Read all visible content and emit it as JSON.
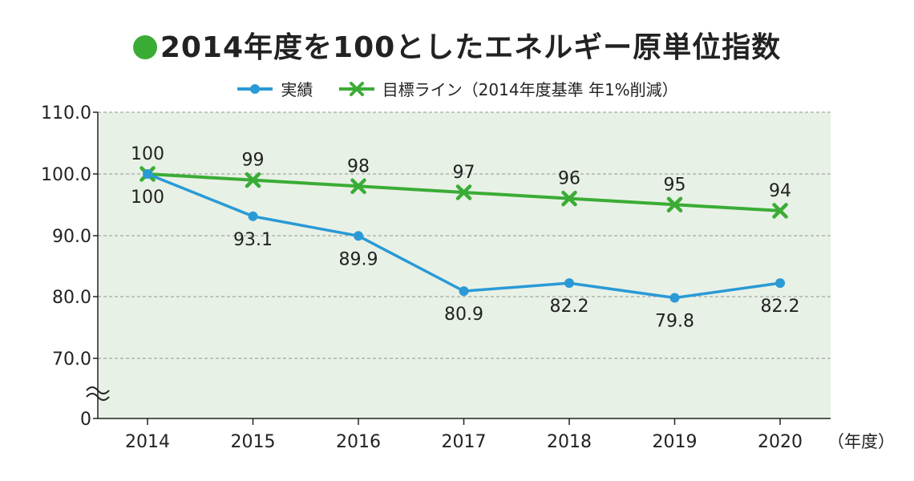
{
  "title": "2014年度を100としたエネルギー原単位指数",
  "colors": {
    "actual": "#2a9ad6",
    "target": "#3aac35",
    "plot_bg": "#e8f1e6",
    "title_dot": "#3aac35"
  },
  "icons": {
    "title": "green-circle-icon",
    "legend_actual": "line-dot-marker-icon",
    "legend_target": "line-x-marker-icon",
    "axis_break": "axis-break-icon"
  },
  "chart_data": {
    "type": "line",
    "title": "2014年度を100としたエネルギー原単位指数",
    "categories": [
      "2014",
      "2015",
      "2016",
      "2017",
      "2018",
      "2019",
      "2020"
    ],
    "x_unit": "（年度）",
    "y_ticks": [
      "110.0",
      "100.0",
      "90.0",
      "80.0",
      "70.0",
      "0"
    ],
    "y_axis_break": true,
    "grid": true,
    "legend_position": "top",
    "series": [
      {
        "key": "actual",
        "name": "実績",
        "marker": "dot",
        "values": [
          100,
          93.1,
          89.9,
          80.9,
          82.2,
          79.8,
          82.2
        ],
        "labels": [
          "100",
          "93.1",
          "89.9",
          "80.9",
          "82.2",
          "79.8",
          "82.2"
        ]
      },
      {
        "key": "target",
        "name": "目標ライン（2014年度基準 年1%削減）",
        "marker": "x",
        "values": [
          100,
          99,
          98,
          97,
          96,
          95,
          94
        ],
        "labels": [
          "100",
          "99",
          "98",
          "97",
          "96",
          "95",
          "94"
        ]
      }
    ]
  }
}
